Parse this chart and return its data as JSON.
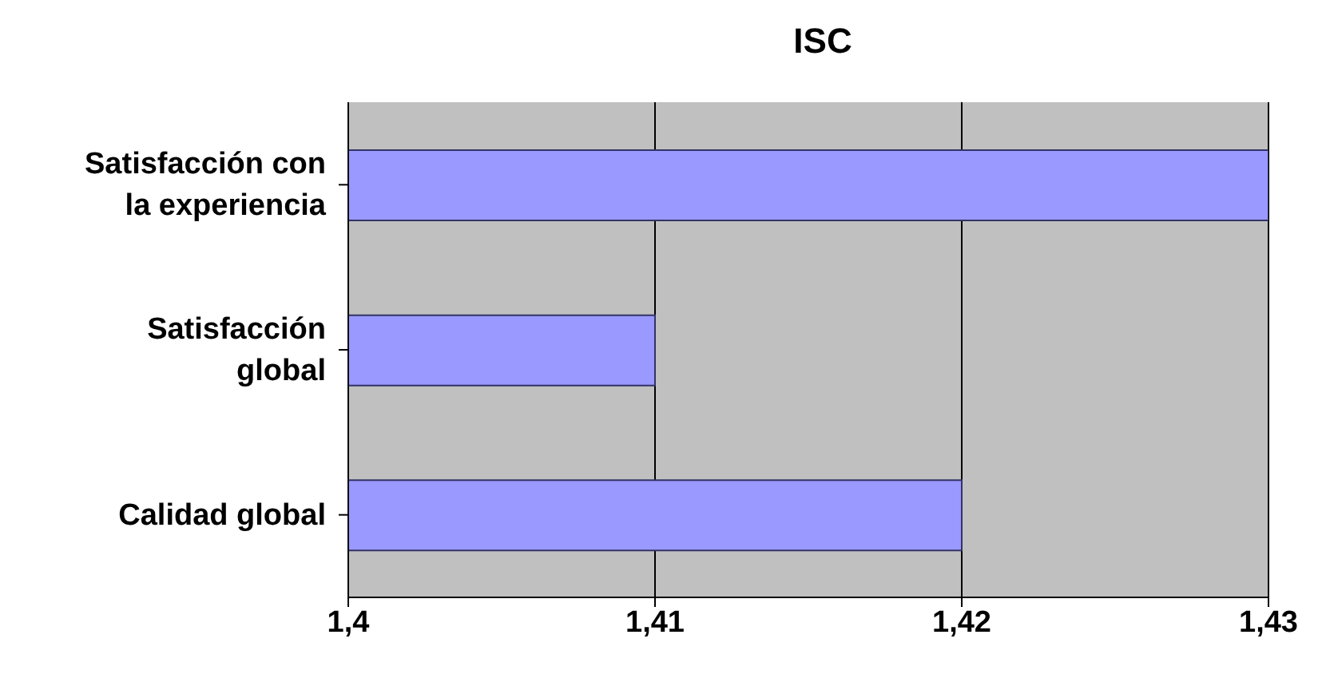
{
  "chart_data": {
    "type": "bar",
    "orientation": "horizontal",
    "title": "ISC",
    "categories": [
      "Satisfacción con la experiencia",
      "Satisfacción global",
      "Calidad global"
    ],
    "values": [
      1.43,
      1.41,
      1.42
    ],
    "color": "#9999ff",
    "xlim": [
      1.4,
      1.43
    ],
    "xticks": [
      {
        "value": 1.4,
        "label": "1,4"
      },
      {
        "value": 1.41,
        "label": "1,41"
      },
      {
        "value": 1.42,
        "label": "1,42"
      },
      {
        "value": 1.43,
        "label": "1,43"
      }
    ],
    "grid": "x",
    "legend": false
  }
}
